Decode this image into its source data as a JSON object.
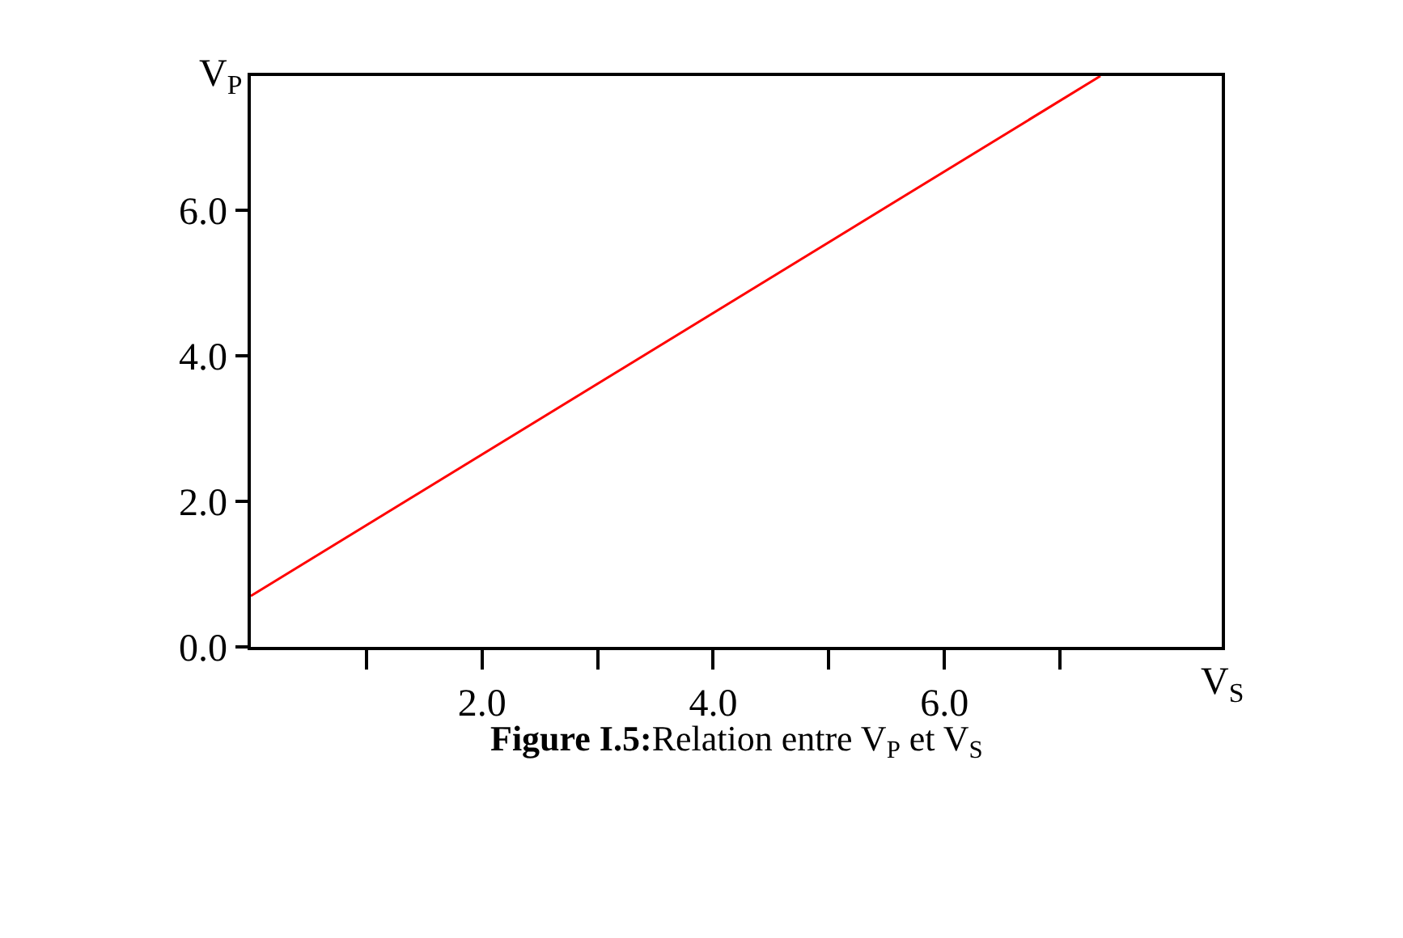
{
  "chart_data": {
    "type": "line",
    "title": "Figure I.5:Relation entre V$_{P}$ et V$_{S}$",
    "xlabel": "V$_{S}$",
    "ylabel": "V$_{P}$",
    "x": [
      0,
      7.35
    ],
    "series": [
      {
        "color": "#ff0000",
        "values": [
          0.7,
          7.85
        ]
      }
    ],
    "xlim": [
      0,
      8.4
    ],
    "ylim": [
      0,
      7.85
    ],
    "xticks": [
      {
        "value": 1,
        "label": null
      },
      {
        "value": 2,
        "label": "2.0"
      },
      {
        "value": 3,
        "label": null
      },
      {
        "value": 4,
        "label": "4.0"
      },
      {
        "value": 5,
        "label": null
      },
      {
        "value": 6,
        "label": "6.0"
      },
      {
        "value": 7,
        "label": null
      }
    ],
    "yticks": [
      {
        "value": 0,
        "label": "0.0"
      },
      {
        "value": 2,
        "label": "2.0"
      },
      {
        "value": 4,
        "label": "4.0"
      },
      {
        "value": 6,
        "label": "6.0"
      }
    ],
    "marker": "none",
    "line_style": "solid"
  }
}
